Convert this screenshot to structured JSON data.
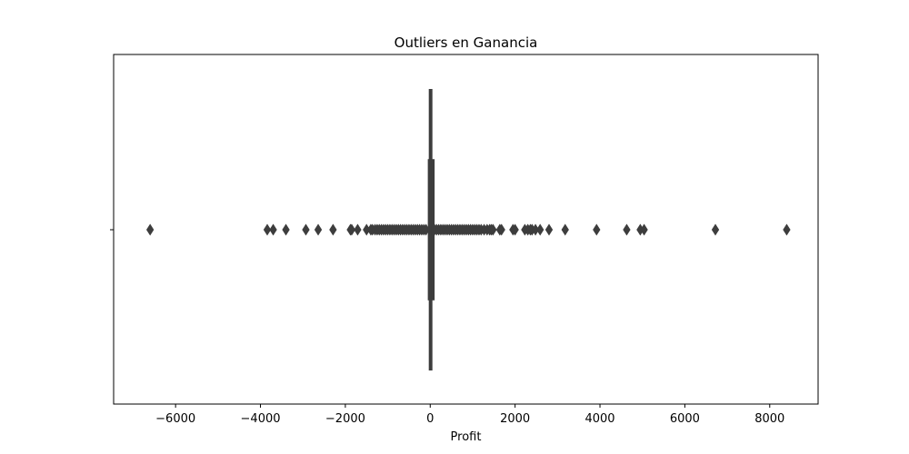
{
  "chart_data": {
    "type": "box",
    "title": "Outliers en Ganancia",
    "xlabel": "Profit",
    "ylabel": "",
    "xlim": [
      -7460,
      9140
    ],
    "xticks": [
      -6000,
      -4000,
      -2000,
      0,
      2000,
      4000,
      6000,
      8000
    ],
    "orientation": "horizontal",
    "grid": false,
    "box": {
      "whisker_low": -40,
      "q1": 2,
      "median": 9,
      "q3": 29,
      "whisker_high": 70
    },
    "outliers": [
      -6600,
      -3840,
      -3700,
      -3400,
      -2930,
      -2640,
      -2290,
      -1880,
      -1850,
      -1710,
      -1500,
      -1400,
      -1360,
      -1300,
      -1250,
      -1200,
      -1150,
      -1100,
      -1050,
      -1000,
      -950,
      -900,
      -850,
      -800,
      -750,
      -700,
      -650,
      -600,
      -550,
      -500,
      -450,
      -400,
      -350,
      -300,
      -250,
      -200,
      -150,
      -100,
      100,
      150,
      200,
      250,
      300,
      350,
      400,
      450,
      500,
      550,
      600,
      650,
      700,
      750,
      800,
      850,
      900,
      950,
      1000,
      1050,
      1100,
      1150,
      1200,
      1270,
      1340,
      1400,
      1440,
      1480,
      1640,
      1680,
      1950,
      2000,
      2230,
      2300,
      2360,
      2400,
      2480,
      2590,
      2800,
      3180,
      3920,
      4630,
      4950,
      5040,
      6720,
      8400
    ],
    "color": "#3d3d3d"
  }
}
